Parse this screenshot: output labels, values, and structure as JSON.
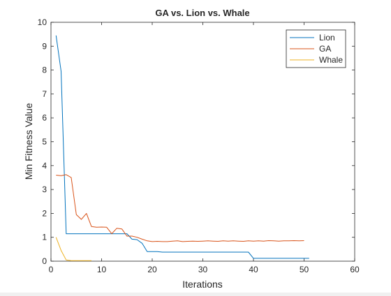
{
  "chart_data": {
    "type": "line",
    "title": "GA vs. Lion vs. Whale",
    "xlabel": "Iterations",
    "ylabel": "Min Fitness Value",
    "xlim": [
      0,
      60
    ],
    "ylim": [
      0,
      10
    ],
    "xticks": [
      "0",
      "10",
      "20",
      "30",
      "40",
      "50",
      "60"
    ],
    "yticks": [
      "0",
      "1",
      "2",
      "3",
      "4",
      "5",
      "6",
      "7",
      "8",
      "9",
      "10"
    ],
    "grid": false,
    "legend_position": "top-right",
    "series": [
      {
        "name": "Lion",
        "color": "#0072BD",
        "x": [
          1,
          2,
          3,
          4,
          5,
          6,
          7,
          8,
          9,
          10,
          11,
          12,
          13,
          14,
          15,
          16,
          17,
          18,
          19,
          20,
          21,
          22,
          23,
          24,
          25,
          26,
          27,
          28,
          29,
          30,
          31,
          32,
          33,
          34,
          35,
          36,
          37,
          38,
          39,
          40,
          41,
          42,
          43,
          44,
          45,
          46,
          47,
          48,
          49,
          50,
          51
        ],
        "y": [
          9.45,
          7.95,
          1.15,
          1.15,
          1.15,
          1.15,
          1.15,
          1.15,
          1.15,
          1.15,
          1.15,
          1.15,
          1.15,
          1.15,
          1.15,
          0.92,
          0.9,
          0.75,
          0.4,
          0.4,
          0.4,
          0.38,
          0.38,
          0.38,
          0.38,
          0.38,
          0.38,
          0.38,
          0.38,
          0.38,
          0.38,
          0.38,
          0.38,
          0.38,
          0.38,
          0.38,
          0.38,
          0.38,
          0.38,
          0.12,
          0.12,
          0.12,
          0.12,
          0.12,
          0.12,
          0.12,
          0.12,
          0.12,
          0.12,
          0.12,
          0.12
        ]
      },
      {
        "name": "GA",
        "color": "#D95319",
        "x": [
          1,
          2,
          3,
          4,
          5,
          6,
          7,
          8,
          9,
          10,
          11,
          12,
          13,
          14,
          15,
          16,
          17,
          18,
          19,
          20,
          21,
          22,
          23,
          24,
          25,
          26,
          27,
          28,
          29,
          30,
          31,
          32,
          33,
          34,
          35,
          36,
          37,
          38,
          39,
          40,
          41,
          42,
          43,
          44,
          45,
          46,
          47,
          48,
          49,
          50
        ],
        "y": [
          3.6,
          3.58,
          3.62,
          3.5,
          1.95,
          1.75,
          2.0,
          1.45,
          1.42,
          1.43,
          1.42,
          1.15,
          1.38,
          1.35,
          1.05,
          1.05,
          1.0,
          0.92,
          0.85,
          0.82,
          0.83,
          0.82,
          0.82,
          0.84,
          0.85,
          0.82,
          0.83,
          0.84,
          0.83,
          0.84,
          0.85,
          0.84,
          0.83,
          0.85,
          0.84,
          0.85,
          0.84,
          0.83,
          0.85,
          0.84,
          0.85,
          0.84,
          0.86,
          0.85,
          0.84,
          0.85,
          0.85,
          0.86,
          0.85,
          0.86
        ]
      },
      {
        "name": "Whale",
        "color": "#EDB120",
        "x": [
          1,
          2,
          3,
          4,
          5,
          6,
          7,
          8
        ],
        "y": [
          1.0,
          0.45,
          0.05,
          0.02,
          0.02,
          0.02,
          0.02,
          0.02
        ]
      }
    ]
  }
}
